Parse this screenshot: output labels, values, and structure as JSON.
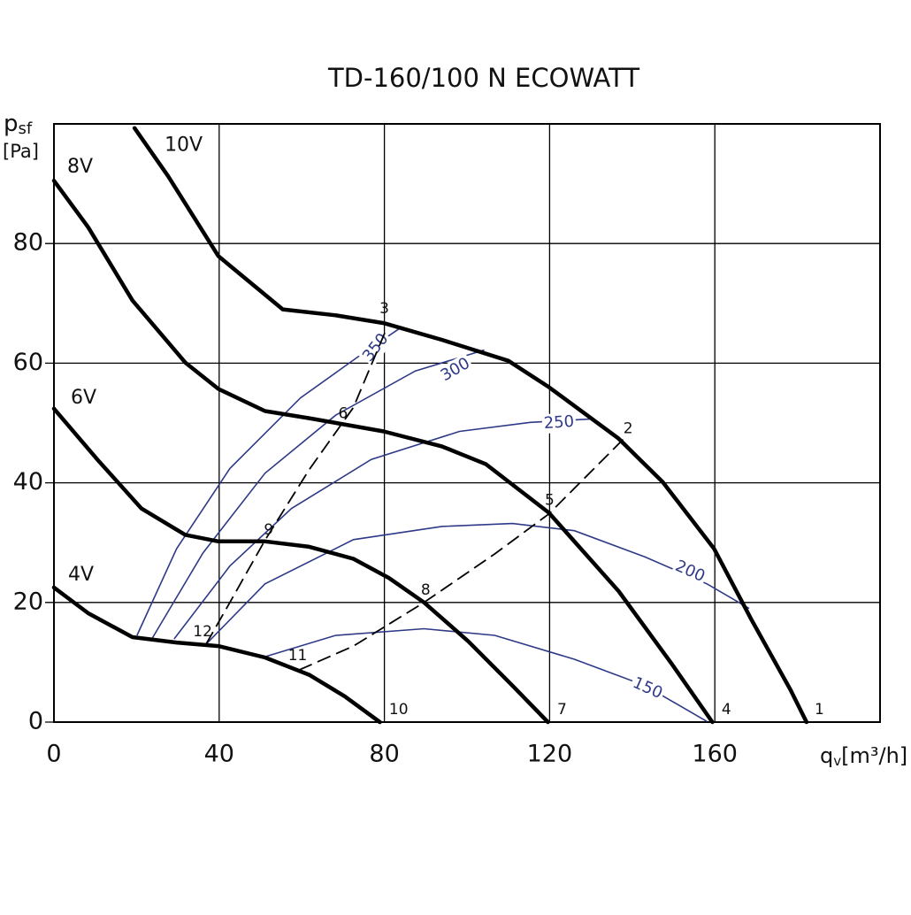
{
  "chart_data": {
    "type": "line",
    "title": "TD-160/100 N ECOWATT",
    "x_label": {
      "symbol": "q",
      "subscript": "v",
      "unit": "[m³/h]"
    },
    "y_label": {
      "symbol": "p",
      "subscript": "sf",
      "unit": "[Pa]"
    },
    "xlim": [
      0,
      200
    ],
    "ylim": [
      0,
      100
    ],
    "xticks": [
      0,
      40,
      80,
      120,
      160
    ],
    "yticks": [
      0,
      20,
      40,
      60,
      80
    ],
    "grid": true,
    "series": [
      {
        "name": "10V",
        "color": "#000000",
        "x": [
          19.5,
          27.6,
          39.8,
          55.4,
          68.2,
          79.8,
          93.9,
          110,
          119.8,
          136.7,
          147.4,
          159.8,
          168.8,
          178.4,
          182.2
        ],
        "y": [
          99.3,
          91.3,
          77.9,
          69,
          68,
          66.7,
          63.9,
          60.4,
          56,
          47.4,
          40.1,
          29,
          17.2,
          5.3,
          0
        ]
      },
      {
        "name": "8V",
        "color": "#000000",
        "x": [
          0,
          8.3,
          19,
          31.8,
          39.8,
          51.1,
          61.8,
          79.8,
          93.9,
          104.6,
          119.8,
          136.7,
          149.5,
          159.4
        ],
        "y": [
          90.5,
          82.7,
          70.5,
          60.1,
          55.7,
          52,
          50.8,
          48.6,
          46.1,
          43.1,
          35,
          21.9,
          9.8,
          0
        ]
      },
      {
        "name": "6V",
        "color": "#000000",
        "x": [
          0,
          10.5,
          21.2,
          31.8,
          39.8,
          51.1,
          61.8,
          72.5,
          81.1,
          89.6,
          100.3,
          111,
          119.6
        ],
        "y": [
          52.4,
          43.9,
          35.7,
          31.3,
          30.2,
          30.2,
          29.3,
          27.3,
          24.1,
          20,
          13.5,
          6.1,
          0
        ]
      },
      {
        "name": "4V",
        "color": "#000000",
        "x": [
          0,
          8.3,
          19,
          29.7,
          39.8,
          51.1,
          61.8,
          70.4,
          78.9
        ],
        "y": [
          22.5,
          18.2,
          14.2,
          13.3,
          12.7,
          10.8,
          7.9,
          4.3,
          0
        ]
      }
    ],
    "power_curves": [
      {
        "name": "350",
        "color": "#2e3a87",
        "x": [
          20.1,
          29.7,
          42.6,
          59.7,
          74.7,
          84.3
        ],
        "y": [
          14.5,
          29,
          42.4,
          54.2,
          61.6,
          66.1
        ]
      },
      {
        "name": "300",
        "color": "#2e3a87",
        "x": [
          23.7,
          36.1,
          51.1,
          68.2,
          87.5,
          104.2
        ],
        "y": [
          13.9,
          28.3,
          41.6,
          51.3,
          58.7,
          62.2
        ]
      },
      {
        "name": "250",
        "color": "#2e3a87",
        "x": [
          29.1,
          42.6,
          57.5,
          76.8,
          98.2,
          115.3,
          130.7
        ],
        "y": [
          13.9,
          26.1,
          35.7,
          43.9,
          48.6,
          50.1,
          50.7
        ]
      },
      {
        "name": "200",
        "color": "#2e3a87",
        "x": [
          36.8,
          51.1,
          72.5,
          93.9,
          111,
          126,
          143.1,
          158.1,
          168.3
        ],
        "y": [
          13,
          23.1,
          30.5,
          32.7,
          33.2,
          32,
          27.6,
          23.1,
          19
        ]
      },
      {
        "name": "150",
        "color": "#2e3a87",
        "x": [
          50.5,
          68.2,
          89.6,
          106.7,
          126,
          143.1,
          158.1
        ],
        "y": [
          10.8,
          14.5,
          15.6,
          14.5,
          10.5,
          6.1,
          0.1
        ]
      }
    ],
    "system_curves": [
      {
        "color": "#000000",
        "x": [
          36.8,
          42.6,
          51.1,
          61.8,
          72.5,
          80.6
        ],
        "y": [
          13,
          20,
          30.4,
          42.2,
          52.6,
          65.9
        ]
      },
      {
        "color": "#000000",
        "x": [
          59.3,
          72.5,
          89.6,
          106.7,
          119.8,
          138
        ],
        "y": [
          8.7,
          12.7,
          20,
          28.1,
          34.8,
          47.4
        ]
      }
    ],
    "operating_points": [
      {
        "label": "1",
        "x": 182,
        "y": 0
      },
      {
        "label": "2",
        "x": 139,
        "y": 47
      },
      {
        "label": "3",
        "x": 80,
        "y": 67
      },
      {
        "label": "4",
        "x": 159.5,
        "y": 0
      },
      {
        "label": "5",
        "x": 120,
        "y": 35
      },
      {
        "label": "6",
        "x": 70,
        "y": 49.5
      },
      {
        "label": "7",
        "x": 119.7,
        "y": 0
      },
      {
        "label": "8",
        "x": 90,
        "y": 20
      },
      {
        "label": "9",
        "x": 52,
        "y": 30
      },
      {
        "label": "10",
        "x": 79,
        "y": 0
      },
      {
        "label": "11",
        "x": 59,
        "y": 9
      },
      {
        "label": "12",
        "x": 36,
        "y": 13
      }
    ]
  }
}
